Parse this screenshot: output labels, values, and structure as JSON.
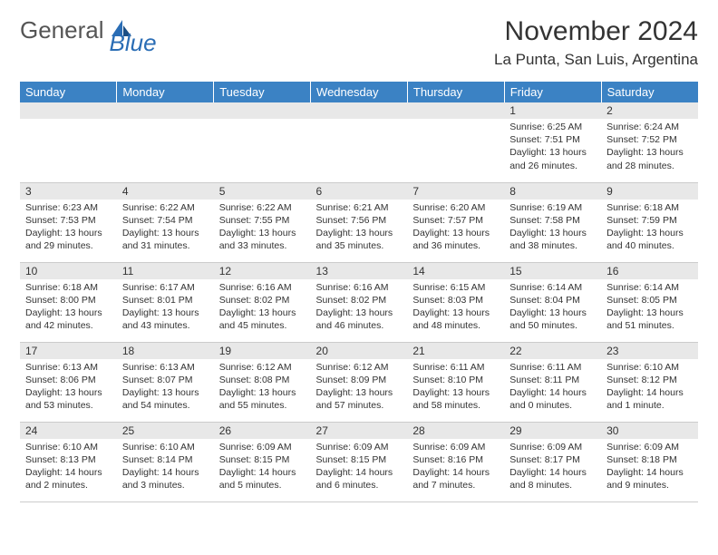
{
  "logo": {
    "general": "General",
    "blue": "Blue"
  },
  "title": "November 2024",
  "location": "La Punta, San Luis, Argentina",
  "colors": {
    "header_bg": "#3b82c4",
    "header_text": "#ffffff",
    "daynum_bg": "#e8e8e8",
    "text": "#333333",
    "logo_blue": "#2a6db5",
    "border": "#cccccc"
  },
  "weekdays": [
    "Sunday",
    "Monday",
    "Tuesday",
    "Wednesday",
    "Thursday",
    "Friday",
    "Saturday"
  ],
  "weeks": [
    [
      null,
      null,
      null,
      null,
      null,
      {
        "n": "1",
        "sr": "Sunrise: 6:25 AM",
        "ss": "Sunset: 7:51 PM",
        "dl": "Daylight: 13 hours and 26 minutes."
      },
      {
        "n": "2",
        "sr": "Sunrise: 6:24 AM",
        "ss": "Sunset: 7:52 PM",
        "dl": "Daylight: 13 hours and 28 minutes."
      }
    ],
    [
      {
        "n": "3",
        "sr": "Sunrise: 6:23 AM",
        "ss": "Sunset: 7:53 PM",
        "dl": "Daylight: 13 hours and 29 minutes."
      },
      {
        "n": "4",
        "sr": "Sunrise: 6:22 AM",
        "ss": "Sunset: 7:54 PM",
        "dl": "Daylight: 13 hours and 31 minutes."
      },
      {
        "n": "5",
        "sr": "Sunrise: 6:22 AM",
        "ss": "Sunset: 7:55 PM",
        "dl": "Daylight: 13 hours and 33 minutes."
      },
      {
        "n": "6",
        "sr": "Sunrise: 6:21 AM",
        "ss": "Sunset: 7:56 PM",
        "dl": "Daylight: 13 hours and 35 minutes."
      },
      {
        "n": "7",
        "sr": "Sunrise: 6:20 AM",
        "ss": "Sunset: 7:57 PM",
        "dl": "Daylight: 13 hours and 36 minutes."
      },
      {
        "n": "8",
        "sr": "Sunrise: 6:19 AM",
        "ss": "Sunset: 7:58 PM",
        "dl": "Daylight: 13 hours and 38 minutes."
      },
      {
        "n": "9",
        "sr": "Sunrise: 6:18 AM",
        "ss": "Sunset: 7:59 PM",
        "dl": "Daylight: 13 hours and 40 minutes."
      }
    ],
    [
      {
        "n": "10",
        "sr": "Sunrise: 6:18 AM",
        "ss": "Sunset: 8:00 PM",
        "dl": "Daylight: 13 hours and 42 minutes."
      },
      {
        "n": "11",
        "sr": "Sunrise: 6:17 AM",
        "ss": "Sunset: 8:01 PM",
        "dl": "Daylight: 13 hours and 43 minutes."
      },
      {
        "n": "12",
        "sr": "Sunrise: 6:16 AM",
        "ss": "Sunset: 8:02 PM",
        "dl": "Daylight: 13 hours and 45 minutes."
      },
      {
        "n": "13",
        "sr": "Sunrise: 6:16 AM",
        "ss": "Sunset: 8:02 PM",
        "dl": "Daylight: 13 hours and 46 minutes."
      },
      {
        "n": "14",
        "sr": "Sunrise: 6:15 AM",
        "ss": "Sunset: 8:03 PM",
        "dl": "Daylight: 13 hours and 48 minutes."
      },
      {
        "n": "15",
        "sr": "Sunrise: 6:14 AM",
        "ss": "Sunset: 8:04 PM",
        "dl": "Daylight: 13 hours and 50 minutes."
      },
      {
        "n": "16",
        "sr": "Sunrise: 6:14 AM",
        "ss": "Sunset: 8:05 PM",
        "dl": "Daylight: 13 hours and 51 minutes."
      }
    ],
    [
      {
        "n": "17",
        "sr": "Sunrise: 6:13 AM",
        "ss": "Sunset: 8:06 PM",
        "dl": "Daylight: 13 hours and 53 minutes."
      },
      {
        "n": "18",
        "sr": "Sunrise: 6:13 AM",
        "ss": "Sunset: 8:07 PM",
        "dl": "Daylight: 13 hours and 54 minutes."
      },
      {
        "n": "19",
        "sr": "Sunrise: 6:12 AM",
        "ss": "Sunset: 8:08 PM",
        "dl": "Daylight: 13 hours and 55 minutes."
      },
      {
        "n": "20",
        "sr": "Sunrise: 6:12 AM",
        "ss": "Sunset: 8:09 PM",
        "dl": "Daylight: 13 hours and 57 minutes."
      },
      {
        "n": "21",
        "sr": "Sunrise: 6:11 AM",
        "ss": "Sunset: 8:10 PM",
        "dl": "Daylight: 13 hours and 58 minutes."
      },
      {
        "n": "22",
        "sr": "Sunrise: 6:11 AM",
        "ss": "Sunset: 8:11 PM",
        "dl": "Daylight: 14 hours and 0 minutes."
      },
      {
        "n": "23",
        "sr": "Sunrise: 6:10 AM",
        "ss": "Sunset: 8:12 PM",
        "dl": "Daylight: 14 hours and 1 minute."
      }
    ],
    [
      {
        "n": "24",
        "sr": "Sunrise: 6:10 AM",
        "ss": "Sunset: 8:13 PM",
        "dl": "Daylight: 14 hours and 2 minutes."
      },
      {
        "n": "25",
        "sr": "Sunrise: 6:10 AM",
        "ss": "Sunset: 8:14 PM",
        "dl": "Daylight: 14 hours and 3 minutes."
      },
      {
        "n": "26",
        "sr": "Sunrise: 6:09 AM",
        "ss": "Sunset: 8:15 PM",
        "dl": "Daylight: 14 hours and 5 minutes."
      },
      {
        "n": "27",
        "sr": "Sunrise: 6:09 AM",
        "ss": "Sunset: 8:15 PM",
        "dl": "Daylight: 14 hours and 6 minutes."
      },
      {
        "n": "28",
        "sr": "Sunrise: 6:09 AM",
        "ss": "Sunset: 8:16 PM",
        "dl": "Daylight: 14 hours and 7 minutes."
      },
      {
        "n": "29",
        "sr": "Sunrise: 6:09 AM",
        "ss": "Sunset: 8:17 PM",
        "dl": "Daylight: 14 hours and 8 minutes."
      },
      {
        "n": "30",
        "sr": "Sunrise: 6:09 AM",
        "ss": "Sunset: 8:18 PM",
        "dl": "Daylight: 14 hours and 9 minutes."
      }
    ]
  ]
}
